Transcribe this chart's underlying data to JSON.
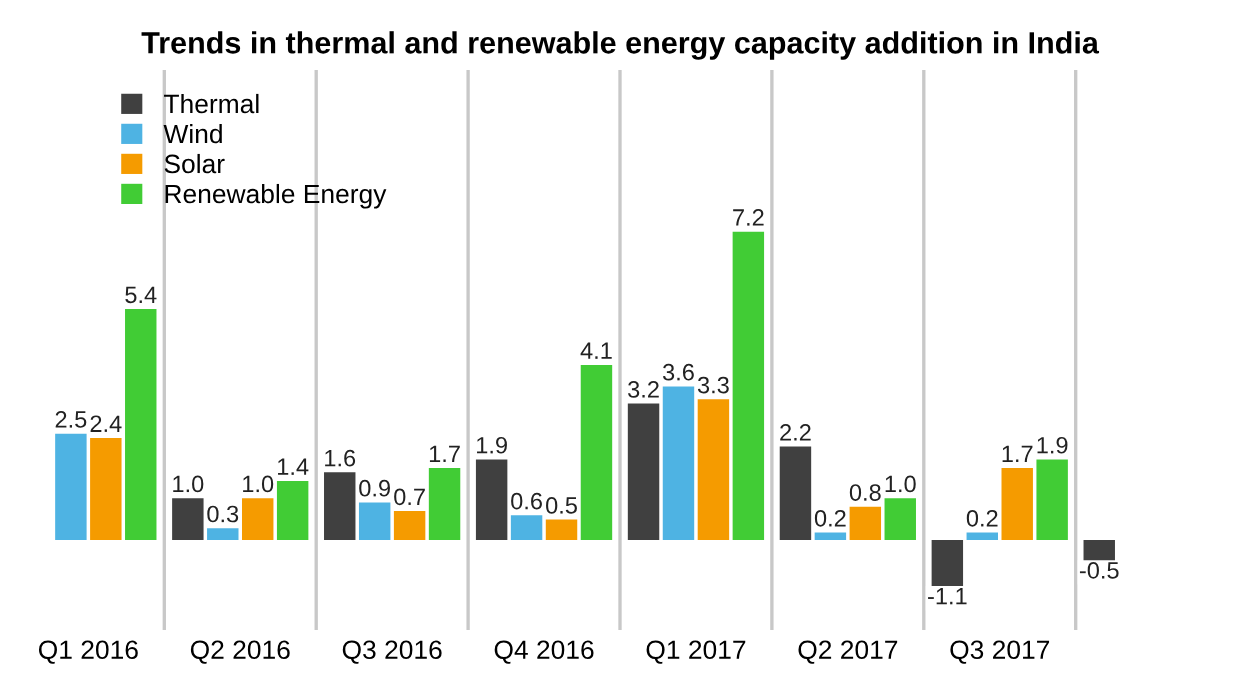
{
  "chart_data": {
    "type": "bar",
    "title": "Trends in thermal and renewable energy capacity addition in India",
    "categories": [
      "Q1 2016",
      "Q2 2016",
      "Q3 2016",
      "Q4 2016",
      "Q1 2017",
      "Q2 2017",
      "Q3 2017",
      null
    ],
    "series": [
      {
        "name": "Thermal",
        "color": "#404040",
        "values": [
          null,
          1.0,
          1.6,
          1.9,
          3.2,
          2.2,
          -1.1,
          -0.5
        ],
        "value_labels": [
          null,
          "1.0",
          "1.6",
          "1.9",
          "3.2",
          "2.2",
          "-1.1",
          "-0.5"
        ]
      },
      {
        "name": "Wind",
        "color": "#4eb3e3",
        "values": [
          2.5,
          0.3,
          0.9,
          0.6,
          3.6,
          0.2,
          0.2,
          null
        ],
        "value_labels": [
          "2.5",
          "0.3",
          "0.9",
          "0.6",
          "3.6",
          "0.2",
          "0.2",
          null
        ]
      },
      {
        "name": "Solar",
        "color": "#f59b00",
        "values": [
          2.4,
          1.0,
          0.7,
          0.5,
          3.3,
          0.8,
          1.7,
          null
        ],
        "value_labels": [
          "2.4",
          "1.0",
          "0.7",
          "0.5",
          "3.3",
          "0.8",
          "1.7",
          null
        ]
      },
      {
        "name": "Renewable Energy",
        "color": "#41cc35",
        "values": [
          5.4,
          1.4,
          1.7,
          4.1,
          7.2,
          1.0,
          1.9,
          null
        ],
        "value_labels": [
          "5.4",
          "1.4",
          "1.7",
          "4.1",
          "7.2",
          "1.0",
          "1.9",
          null
        ]
      }
    ],
    "legend": "top left",
    "tick_labels": "x"
  }
}
